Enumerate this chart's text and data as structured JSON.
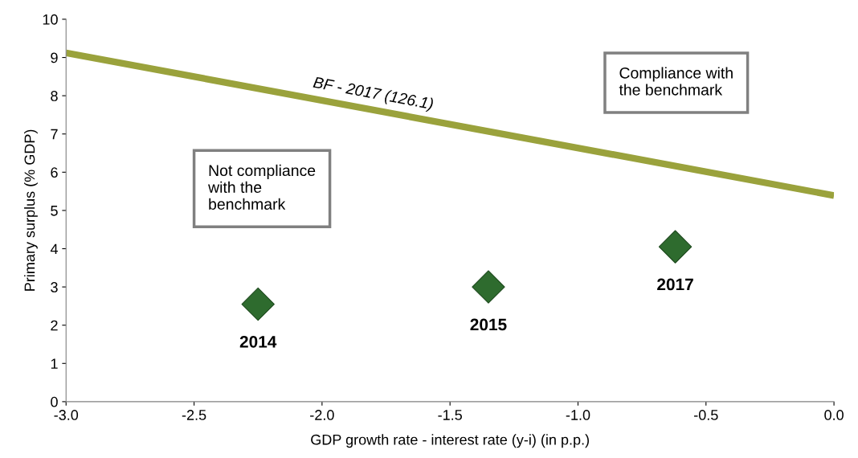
{
  "chart_data": {
    "type": "scatter",
    "xlabel": "GDP growth rate - interest rate (y-i) (in p.p.)",
    "ylabel": "Primary surplus (% GDP)",
    "xlim": [
      -3,
      0
    ],
    "xticks": [
      {
        "value": -3,
        "label": "-3.0"
      },
      {
        "value": -2.5,
        "label": "-2.5"
      },
      {
        "value": -2,
        "label": "-2.0"
      },
      {
        "value": -1.5,
        "label": "-1.5"
      },
      {
        "value": -1,
        "label": "-1.0"
      },
      {
        "value": -0.5,
        "label": "-0.5"
      },
      {
        "value": 0,
        "label": "0.0"
      }
    ],
    "ylim": [
      0,
      10
    ],
    "yticks": [
      0,
      1,
      2,
      3,
      4,
      5,
      6,
      7,
      8,
      9,
      10
    ],
    "grid": false,
    "legend": false,
    "series": [
      {
        "type": "line",
        "color": "#9aa23c",
        "x": [
          -3,
          0
        ],
        "values": [
          9.12,
          5.39
        ],
        "marker": "none",
        "line_style": "solid"
      },
      {
        "color": "#2e6b2e",
        "x": [
          -2.25,
          -1.35,
          -0.62
        ],
        "values": [
          2.55,
          3.0,
          4.05
        ],
        "marker": "diamond"
      }
    ],
    "annotations": [
      {
        "text": "2014",
        "x": -2.25,
        "y": 2.55
      },
      {
        "text": "2015",
        "x": -1.35,
        "y": 3.0
      },
      {
        "text": "2017",
        "x": -0.62,
        "y": 4.05
      },
      "BF - 2017 (126.1)",
      "Compliance with\nthe benchmark",
      "Not compliance\nwith the\nbenchmark"
    ]
  }
}
